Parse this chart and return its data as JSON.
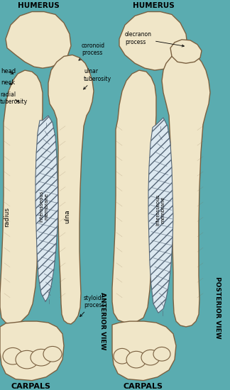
{
  "bg_color": "#5aacb0",
  "bone_color": "#f0e6c8",
  "bone_edge": "#7a6040",
  "membrane_color": "#dce8f0",
  "membrane_edge": "#556677",
  "text_color": "#000000",
  "left_title": "HUMERUS",
  "right_title": "HUMERUS",
  "left_bottom": "CARPALS",
  "right_bottom": "CARPALS",
  "left_view": "ANTERIOR VIEW",
  "right_view": "POSTERIOR VIEW"
}
